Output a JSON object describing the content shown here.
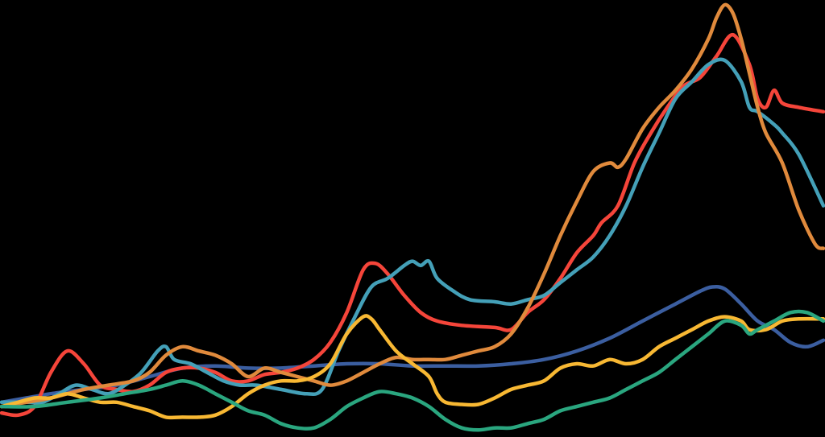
{
  "chart_data": {
    "type": "line",
    "title": "",
    "xlabel": "",
    "ylabel": "",
    "grid": false,
    "legend": "none",
    "background": "#000000",
    "xlim": [
      0,
      100
    ],
    "ylim": [
      0,
      100
    ],
    "series": [
      {
        "color": "#3b5ea0",
        "points": [
          [
            0,
            7
          ],
          [
            3,
            8
          ],
          [
            6,
            9
          ],
          [
            10,
            10
          ],
          [
            14,
            11
          ],
          [
            18,
            13
          ],
          [
            22,
            15
          ],
          [
            26,
            15.5
          ],
          [
            30,
            15
          ],
          [
            34,
            15
          ],
          [
            38,
            15.5
          ],
          [
            42,
            16
          ],
          [
            46,
            16
          ],
          [
            50,
            15.5
          ],
          [
            54,
            15.5
          ],
          [
            58,
            15.5
          ],
          [
            62,
            16
          ],
          [
            66,
            17
          ],
          [
            70,
            19
          ],
          [
            74,
            22
          ],
          [
            78,
            26
          ],
          [
            82,
            30
          ],
          [
            85,
            33
          ],
          [
            86.5,
            34
          ],
          [
            88,
            33.5
          ],
          [
            90,
            30
          ],
          [
            92,
            26
          ],
          [
            94,
            24
          ],
          [
            96,
            21
          ],
          [
            98,
            20
          ],
          [
            100,
            21.5
          ]
        ]
      },
      {
        "color": "#f5453a",
        "points": [
          [
            0,
            4.5
          ],
          [
            2,
            4
          ],
          [
            4,
            6
          ],
          [
            6,
            14
          ],
          [
            8,
            19
          ],
          [
            10,
            16
          ],
          [
            12,
            11
          ],
          [
            14,
            10
          ],
          [
            16,
            9.5
          ],
          [
            18,
            11
          ],
          [
            20,
            14
          ],
          [
            22,
            15
          ],
          [
            24,
            15
          ],
          [
            26,
            14
          ],
          [
            28,
            12
          ],
          [
            30,
            12
          ],
          [
            32,
            13.5
          ],
          [
            34,
            14
          ],
          [
            36,
            15
          ],
          [
            38,
            17
          ],
          [
            40,
            21
          ],
          [
            42,
            28
          ],
          [
            44,
            38
          ],
          [
            45.5,
            39.5
          ],
          [
            47,
            37
          ],
          [
            49,
            32
          ],
          [
            51,
            28
          ],
          [
            53,
            26
          ],
          [
            56,
            25
          ],
          [
            60,
            24.5
          ],
          [
            62,
            24
          ],
          [
            64,
            28
          ],
          [
            66,
            31
          ],
          [
            68,
            36
          ],
          [
            70,
            42
          ],
          [
            72,
            46
          ],
          [
            73,
            49
          ],
          [
            75,
            53
          ],
          [
            77,
            63
          ],
          [
            79,
            70
          ],
          [
            81,
            76
          ],
          [
            83,
            81
          ],
          [
            85,
            83
          ],
          [
            87,
            88
          ],
          [
            89,
            93
          ],
          [
            91,
            86
          ],
          [
            92,
            78
          ],
          [
            93,
            76
          ],
          [
            94,
            80
          ],
          [
            95,
            77
          ],
          [
            97,
            76
          ],
          [
            100,
            75
          ]
        ]
      },
      {
        "color": "#44a0b8",
        "points": [
          [
            0,
            7
          ],
          [
            3,
            7
          ],
          [
            5,
            7
          ],
          [
            7,
            9
          ],
          [
            9,
            11
          ],
          [
            11,
            10
          ],
          [
            13,
            9
          ],
          [
            15,
            11
          ],
          [
            17,
            14
          ],
          [
            19,
            19
          ],
          [
            20,
            20
          ],
          [
            21,
            17
          ],
          [
            23,
            16
          ],
          [
            25,
            14
          ],
          [
            27,
            12
          ],
          [
            29,
            11
          ],
          [
            31,
            11
          ],
          [
            34,
            10
          ],
          [
            37,
            9
          ],
          [
            39,
            10
          ],
          [
            41,
            19
          ],
          [
            43,
            27
          ],
          [
            45,
            34
          ],
          [
            47,
            36
          ],
          [
            49,
            39
          ],
          [
            50,
            40
          ],
          [
            51,
            39
          ],
          [
            52,
            40
          ],
          [
            53,
            36
          ],
          [
            55,
            33
          ],
          [
            57,
            31
          ],
          [
            60,
            30.5
          ],
          [
            62,
            30
          ],
          [
            64,
            31
          ],
          [
            66,
            32
          ],
          [
            68,
            35
          ],
          [
            70,
            38
          ],
          [
            72,
            41
          ],
          [
            74,
            46
          ],
          [
            76,
            53
          ],
          [
            78,
            62
          ],
          [
            80,
            70
          ],
          [
            82,
            78
          ],
          [
            84,
            82
          ],
          [
            86,
            86
          ],
          [
            88,
            87
          ],
          [
            90,
            82
          ],
          [
            91,
            76
          ],
          [
            92,
            75
          ],
          [
            94,
            72
          ],
          [
            95,
            70
          ],
          [
            97,
            65
          ],
          [
            100,
            53
          ]
        ]
      },
      {
        "color": "#e08a3c",
        "points": [
          [
            0,
            6
          ],
          [
            3,
            7
          ],
          [
            6,
            8
          ],
          [
            10,
            10
          ],
          [
            13,
            11
          ],
          [
            16,
            12
          ],
          [
            18,
            14
          ],
          [
            20,
            18
          ],
          [
            22,
            20
          ],
          [
            24,
            19
          ],
          [
            26,
            18
          ],
          [
            28,
            16
          ],
          [
            30,
            13
          ],
          [
            32,
            15
          ],
          [
            34,
            14
          ],
          [
            36,
            13
          ],
          [
            38,
            12
          ],
          [
            40,
            11
          ],
          [
            42,
            12
          ],
          [
            44,
            14
          ],
          [
            46,
            16
          ],
          [
            48,
            17.5
          ],
          [
            50,
            17
          ],
          [
            52,
            17
          ],
          [
            54,
            17
          ],
          [
            56,
            18
          ],
          [
            58,
            19
          ],
          [
            60,
            20
          ],
          [
            62,
            23
          ],
          [
            64,
            29
          ],
          [
            66,
            37
          ],
          [
            68,
            46
          ],
          [
            70,
            54
          ],
          [
            72,
            61
          ],
          [
            74,
            63
          ],
          [
            75,
            62
          ],
          [
            76,
            64
          ],
          [
            78,
            71
          ],
          [
            80,
            76
          ],
          [
            82,
            80
          ],
          [
            84,
            85
          ],
          [
            86,
            92
          ],
          [
            87,
            97
          ],
          [
            88,
            100
          ],
          [
            89,
            98
          ],
          [
            90,
            92
          ],
          [
            91,
            84
          ],
          [
            92,
            76
          ],
          [
            93,
            70
          ],
          [
            95,
            63
          ],
          [
            97,
            52
          ],
          [
            99,
            44
          ],
          [
            100,
            43
          ]
        ]
      },
      {
        "color": "#f8b833",
        "points": [
          [
            0,
            6
          ],
          [
            2,
            7
          ],
          [
            4,
            8
          ],
          [
            6,
            8
          ],
          [
            8,
            9
          ],
          [
            10,
            8
          ],
          [
            12,
            7
          ],
          [
            14,
            7
          ],
          [
            16,
            6
          ],
          [
            18,
            5
          ],
          [
            20,
            3.5
          ],
          [
            22,
            3.5
          ],
          [
            24,
            3.5
          ],
          [
            26,
            4
          ],
          [
            28,
            6
          ],
          [
            30,
            9
          ],
          [
            32,
            11
          ],
          [
            34,
            12
          ],
          [
            36,
            12
          ],
          [
            38,
            13
          ],
          [
            40,
            16
          ],
          [
            42,
            23
          ],
          [
            44,
            27
          ],
          [
            45,
            26.5
          ],
          [
            46,
            24
          ],
          [
            48,
            19
          ],
          [
            50,
            16
          ],
          [
            52,
            13
          ],
          [
            53,
            9
          ],
          [
            54,
            7
          ],
          [
            56,
            6.5
          ],
          [
            58,
            6.5
          ],
          [
            60,
            8
          ],
          [
            62,
            10
          ],
          [
            64,
            11
          ],
          [
            66,
            12
          ],
          [
            68,
            15
          ],
          [
            70,
            16
          ],
          [
            72,
            15.5
          ],
          [
            74,
            17
          ],
          [
            76,
            16
          ],
          [
            78,
            17
          ],
          [
            80,
            20
          ],
          [
            82,
            22
          ],
          [
            84,
            24
          ],
          [
            86,
            26
          ],
          [
            88,
            27
          ],
          [
            90,
            26
          ],
          [
            91,
            24
          ],
          [
            93,
            24
          ],
          [
            95,
            26
          ],
          [
            97,
            26.5
          ],
          [
            100,
            26.5
          ]
        ]
      },
      {
        "color": "#2aa67f",
        "points": [
          [
            0,
            6
          ],
          [
            4,
            6
          ],
          [
            8,
            7
          ],
          [
            12,
            8
          ],
          [
            15,
            9
          ],
          [
            18,
            10
          ],
          [
            20,
            11
          ],
          [
            22,
            12
          ],
          [
            24,
            11
          ],
          [
            26,
            9
          ],
          [
            28,
            7
          ],
          [
            30,
            5
          ],
          [
            32,
            4
          ],
          [
            34,
            2
          ],
          [
            36,
            1
          ],
          [
            38,
            1
          ],
          [
            40,
            3
          ],
          [
            42,
            6
          ],
          [
            44,
            8
          ],
          [
            46,
            9.5
          ],
          [
            48,
            9
          ],
          [
            50,
            8
          ],
          [
            52,
            6
          ],
          [
            54,
            3
          ],
          [
            56,
            1
          ],
          [
            58,
            0.5
          ],
          [
            60,
            1
          ],
          [
            62,
            1
          ],
          [
            64,
            2
          ],
          [
            66,
            3
          ],
          [
            68,
            5
          ],
          [
            70,
            6
          ],
          [
            72,
            7
          ],
          [
            74,
            8
          ],
          [
            76,
            10
          ],
          [
            78,
            12
          ],
          [
            80,
            14
          ],
          [
            82,
            17
          ],
          [
            84,
            20
          ],
          [
            86,
            23
          ],
          [
            88,
            26
          ],
          [
            90,
            25
          ],
          [
            91,
            23
          ],
          [
            92,
            24
          ],
          [
            94,
            26
          ],
          [
            96,
            28
          ],
          [
            98,
            28
          ],
          [
            100,
            26
          ]
        ]
      }
    ]
  }
}
